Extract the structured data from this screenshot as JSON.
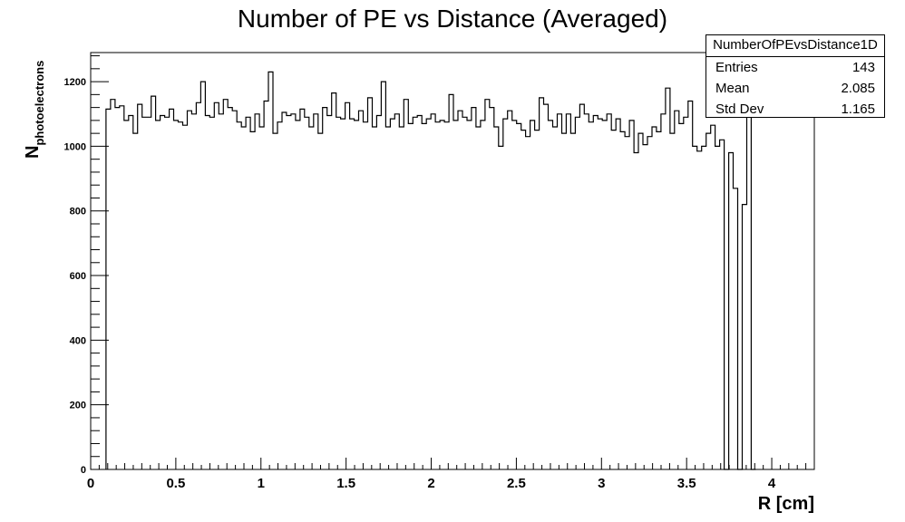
{
  "chart_data": {
    "type": "bar",
    "title": "Number of PE vs Distance (Averaged)",
    "xlabel": "R [cm]",
    "ylabel_main": "N",
    "ylabel_sub": "photoelectrons",
    "xlim": [
      0,
      4.25
    ],
    "ylim": [
      0,
      1290
    ],
    "x_ticks": [
      0,
      0.5,
      1,
      1.5,
      2,
      2.5,
      3,
      3.5,
      4
    ],
    "x_tick_labels": [
      "0",
      "0.5",
      "1",
      "1.5",
      "2",
      "2.5",
      "3",
      "3.5",
      "4"
    ],
    "y_ticks": [
      0,
      200,
      400,
      600,
      800,
      1000,
      1200
    ],
    "y_tick_labels": [
      "0",
      "200",
      "400",
      "600",
      "800",
      "1000",
      "1200"
    ],
    "bin_start": 0.09,
    "bin_width": 0.0265,
    "values": [
      1115,
      1145,
      1120,
      1125,
      1080,
      1095,
      1040,
      1130,
      1090,
      1090,
      1155,
      1080,
      1095,
      1090,
      1115,
      1080,
      1075,
      1065,
      1110,
      1100,
      1135,
      1200,
      1095,
      1090,
      1135,
      1100,
      1145,
      1120,
      1110,
      1075,
      1060,
      1090,
      1045,
      1100,
      1060,
      1140,
      1230,
      1040,
      1075,
      1105,
      1095,
      1100,
      1080,
      1115,
      1090,
      1060,
      1100,
      1040,
      1120,
      1095,
      1165,
      1090,
      1085,
      1135,
      1085,
      1080,
      1110,
      1075,
      1150,
      1060,
      1095,
      1200,
      1060,
      1085,
      1100,
      1060,
      1145,
      1070,
      1090,
      1095,
      1070,
      1085,
      1100,
      1075,
      1080,
      1075,
      1160,
      1080,
      1110,
      1090,
      1080,
      1120,
      1060,
      1080,
      1145,
      1120,
      1060,
      1000,
      1085,
      1110,
      1080,
      1070,
      1050,
      1030,
      1080,
      1050,
      1150,
      1130,
      1080,
      1060,
      1100,
      1040,
      1100,
      1040,
      1090,
      1130,
      1100,
      1075,
      1095,
      1085,
      1080,
      1100,
      1050,
      1085,
      1045,
      1030,
      1080,
      980,
      1040,
      1005,
      1030,
      1060,
      1045,
      1100,
      1180,
      1040,
      1110,
      1070,
      1090,
      1140,
      1000,
      985,
      1000,
      1040,
      1065,
      1000,
      1020,
      0,
      980,
      870,
      0,
      820,
      1190,
      0
    ],
    "stats": {
      "name": "NumberOfPEvsDistance1D",
      "entries_label": "Entries",
      "entries": "143",
      "mean_label": "Mean",
      "mean": "2.085",
      "std_label": "Std Dev",
      "std": "1.165"
    }
  }
}
